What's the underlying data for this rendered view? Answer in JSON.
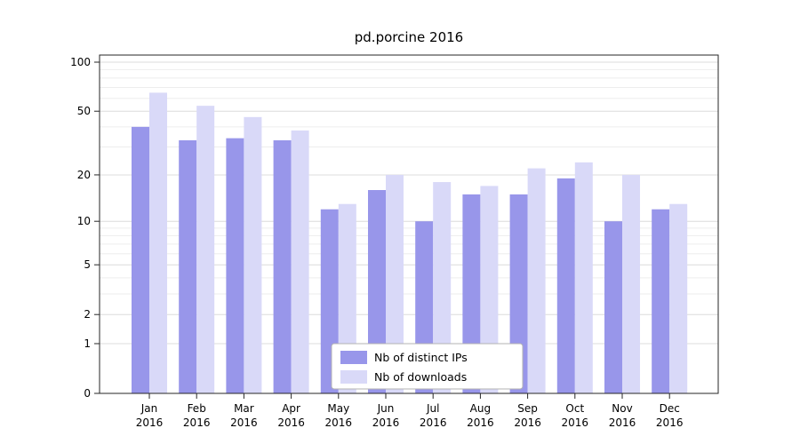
{
  "chart_data": {
    "type": "bar",
    "title": "pd.porcine 2016",
    "categories": [
      "Jan",
      "Feb",
      "Mar",
      "Apr",
      "May",
      "Jun",
      "Jul",
      "Aug",
      "Sep",
      "Oct",
      "Nov",
      "Dec"
    ],
    "year": "2016",
    "series": [
      {
        "name": "Nb of distinct IPs",
        "color": "#9896ea",
        "values": [
          40,
          33,
          34,
          33,
          12,
          16,
          10,
          15,
          15,
          19,
          10,
          12
        ]
      },
      {
        "name": "Nb of downloads",
        "color": "#d9d9f8",
        "values": [
          65,
          54,
          46,
          38,
          13,
          20,
          18,
          17,
          22,
          24,
          20,
          13
        ]
      }
    ],
    "y_ticks": [
      100,
      50,
      20,
      10,
      5,
      2,
      1,
      0
    ],
    "y_minor_ticks": [
      3,
      4,
      6,
      7,
      8,
      9,
      30,
      40,
      60,
      70,
      80,
      90
    ],
    "scale": "log1p",
    "ylim": [
      0,
      100
    ],
    "grid": true,
    "legend_position": "bottom-center"
  },
  "colors": {
    "background": "#ffffff",
    "grid_major": "#dcdcdc",
    "grid_minor": "#ededed",
    "axis": "#262626",
    "text": "#000000",
    "legend_border": "#b3b3b3",
    "legend_background": "#ffffff"
  }
}
